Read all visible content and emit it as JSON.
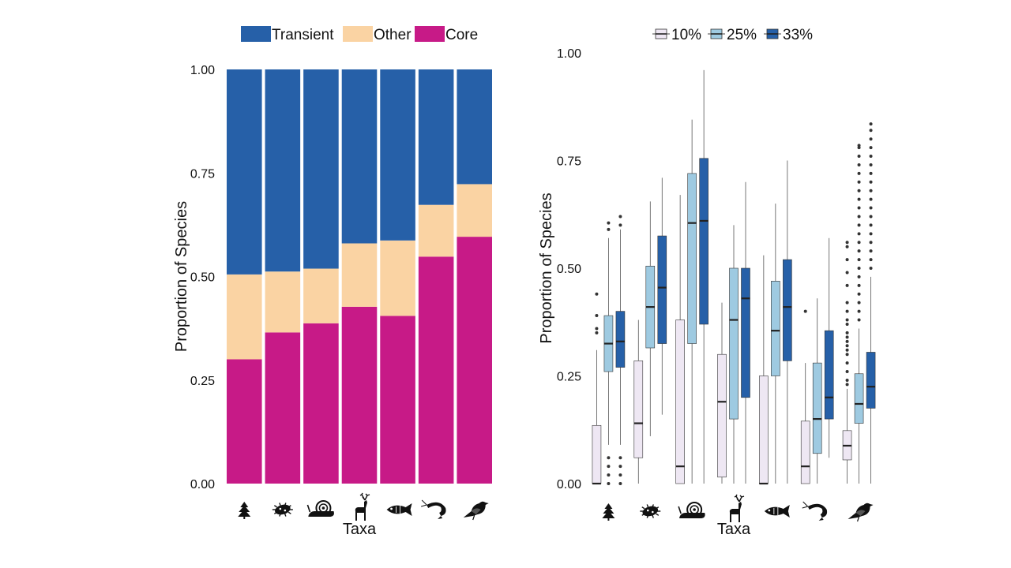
{
  "chart_data": [
    {
      "type": "bar",
      "stacked": true,
      "proportional": true,
      "xlabel": "Taxa",
      "ylabel": "Proportion of Species",
      "ylim": [
        0,
        1
      ],
      "yticks": [
        "0.00",
        "0.25",
        "0.50",
        "0.75",
        "1.00"
      ],
      "ytick_values": [
        0,
        0.25,
        0.5,
        0.75,
        1
      ],
      "legend_position": "top",
      "categories": [
        "tree",
        "microbe",
        "snail",
        "deer",
        "fish",
        "shrimp",
        "bird"
      ],
      "category_icons": [
        "tree-icon",
        "microbe-icon",
        "snail-icon",
        "deer-icon",
        "fish-icon",
        "shrimp-icon",
        "bird-icon"
      ],
      "series": [
        {
          "name": "Core",
          "color": "#C71A87",
          "values": [
            0.3,
            0.365,
            0.387,
            0.427,
            0.405,
            0.548,
            0.596
          ]
        },
        {
          "name": "Other",
          "color": "#FAD3A3",
          "values": [
            0.205,
            0.147,
            0.132,
            0.153,
            0.182,
            0.125,
            0.127
          ]
        },
        {
          "name": "Transient",
          "color": "#2660A8",
          "values": [
            0.495,
            0.488,
            0.481,
            0.42,
            0.413,
            0.327,
            0.277
          ]
        }
      ],
      "legend_order": [
        "Transient",
        "Other",
        "Core"
      ]
    },
    {
      "type": "box",
      "xlabel": "Taxa",
      "ylabel": "Proportion of Species",
      "ylim": [
        0,
        1
      ],
      "yticks": [
        "0.00",
        "0.25",
        "0.50",
        "0.75",
        "1.00"
      ],
      "ytick_values": [
        0,
        0.25,
        0.5,
        0.75,
        1
      ],
      "legend_position": "top",
      "categories": [
        "tree",
        "microbe",
        "snail",
        "deer",
        "fish",
        "shrimp",
        "bird"
      ],
      "category_icons": [
        "tree-icon",
        "microbe-icon",
        "snail-icon",
        "deer-icon",
        "fish-icon",
        "shrimp-icon",
        "bird-icon"
      ],
      "series": [
        {
          "name": "10%",
          "color": "#EEE7F3",
          "boxes": [
            {
              "min": 0,
              "q1": 0,
              "median": 0,
              "q3": 0.135,
              "max": 0.31,
              "outliers": [
                0.35,
                0.36,
                0.39,
                0.44
              ]
            },
            {
              "min": 0,
              "q1": 0.06,
              "median": 0.14,
              "q3": 0.285,
              "max": 0.38,
              "outliers": []
            },
            {
              "min": 0,
              "q1": 0,
              "median": 0.04,
              "q3": 0.38,
              "max": 0.67,
              "outliers": []
            },
            {
              "min": 0,
              "q1": 0.015,
              "median": 0.19,
              "q3": 0.3,
              "max": 0.42,
              "outliers": []
            },
            {
              "min": 0,
              "q1": 0,
              "median": 0,
              "q3": 0.25,
              "max": 0.53,
              "outliers": []
            },
            {
              "min": 0,
              "q1": 0,
              "median": 0.04,
              "q3": 0.145,
              "max": 0.28,
              "outliers": [
                0.4
              ]
            },
            {
              "min": 0.0,
              "q1": 0.055,
              "median": 0.088,
              "q3": 0.123,
              "max": 0.22,
              "outliers": [
                0.23,
                0.24,
                0.26,
                0.28,
                0.3,
                0.31,
                0.32,
                0.33,
                0.34,
                0.35,
                0.37,
                0.38,
                0.4,
                0.42,
                0.46,
                0.49,
                0.52,
                0.55,
                0.56
              ]
            }
          ]
        },
        {
          "name": "25%",
          "color": "#9ECAE1",
          "boxes": [
            {
              "min": 0.09,
              "q1": 0.26,
              "median": 0.325,
              "q3": 0.39,
              "max": 0.57,
              "outliers": [
                0.0,
                0.02,
                0.04,
                0.06,
                0.59,
                0.605
              ]
            },
            {
              "min": 0.11,
              "q1": 0.315,
              "median": 0.41,
              "q3": 0.505,
              "max": 0.655,
              "outliers": []
            },
            {
              "min": 0.0,
              "q1": 0.325,
              "median": 0.605,
              "q3": 0.72,
              "max": 0.845,
              "outliers": []
            },
            {
              "min": 0.0,
              "q1": 0.15,
              "median": 0.38,
              "q3": 0.5,
              "max": 0.6,
              "outliers": []
            },
            {
              "min": 0.0,
              "q1": 0.25,
              "median": 0.355,
              "q3": 0.47,
              "max": 0.65,
              "outliers": []
            },
            {
              "min": 0.0,
              "q1": 0.07,
              "median": 0.15,
              "q3": 0.28,
              "max": 0.43,
              "outliers": []
            },
            {
              "min": 0.0,
              "q1": 0.14,
              "median": 0.185,
              "q3": 0.255,
              "max": 0.36,
              "outliers": [
                0.38,
                0.4,
                0.42,
                0.44,
                0.46,
                0.48,
                0.5,
                0.52,
                0.54,
                0.56,
                0.58,
                0.6,
                0.62,
                0.64,
                0.66,
                0.68,
                0.7,
                0.72,
                0.74,
                0.76,
                0.78,
                0.785
              ]
            }
          ]
        },
        {
          "name": "33%",
          "color": "#2660A8",
          "boxes": [
            {
              "min": 0.09,
              "q1": 0.27,
              "median": 0.33,
              "q3": 0.4,
              "max": 0.59,
              "outliers": [
                0.0,
                0.02,
                0.04,
                0.06,
                0.6,
                0.62
              ]
            },
            {
              "min": 0.16,
              "q1": 0.325,
              "median": 0.455,
              "q3": 0.575,
              "max": 0.71,
              "outliers": []
            },
            {
              "min": 0.0,
              "q1": 0.37,
              "median": 0.61,
              "q3": 0.755,
              "max": 0.96,
              "outliers": []
            },
            {
              "min": 0.0,
              "q1": 0.2,
              "median": 0.43,
              "q3": 0.5,
              "max": 0.7,
              "outliers": []
            },
            {
              "min": 0.0,
              "q1": 0.285,
              "median": 0.41,
              "q3": 0.52,
              "max": 0.75,
              "outliers": []
            },
            {
              "min": 0.06,
              "q1": 0.15,
              "median": 0.2,
              "q3": 0.355,
              "max": 0.57,
              "outliers": []
            },
            {
              "min": 0.0,
              "q1": 0.175,
              "median": 0.225,
              "q3": 0.305,
              "max": 0.48,
              "outliers": [
                0.5,
                0.52,
                0.54,
                0.56,
                0.58,
                0.6,
                0.62,
                0.64,
                0.66,
                0.68,
                0.7,
                0.72,
                0.74,
                0.76,
                0.78,
                0.8,
                0.82,
                0.835
              ]
            }
          ]
        }
      ],
      "legend_order": [
        "10%",
        "25%",
        "33%"
      ]
    }
  ]
}
